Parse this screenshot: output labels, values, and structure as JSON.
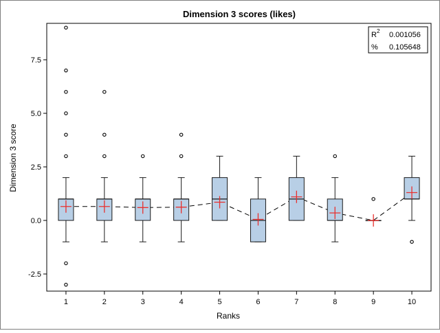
{
  "chart_data": {
    "type": "box",
    "title": "Dimension 3 scores (likes)",
    "xlabel": "Ranks",
    "ylabel": "Dimension 3 score",
    "xlim": [
      0.5,
      10.5
    ],
    "ylim": [
      -3.3,
      9.2
    ],
    "y_ticks": [
      -2.5,
      0.0,
      2.5,
      5.0,
      7.5
    ],
    "y_tick_labels": [
      "-2.5",
      "0.0",
      "2.5",
      "5.0",
      "7.5"
    ],
    "categories": [
      "1",
      "2",
      "3",
      "4",
      "5",
      "6",
      "7",
      "8",
      "9",
      "10"
    ],
    "boxes": [
      {
        "category": "1",
        "min": -1,
        "q1": 0,
        "median": 1,
        "q3": 1,
        "max": 2,
        "mean": 0.65,
        "outliers": [
          3,
          4,
          5,
          6,
          7,
          9,
          -2,
          -3
        ]
      },
      {
        "category": "2",
        "min": -1,
        "q1": 0,
        "median": 1,
        "q3": 1,
        "max": 2,
        "mean": 0.65,
        "outliers": [
          3,
          4,
          6
        ]
      },
      {
        "category": "3",
        "min": -1,
        "q1": 0,
        "median": 1,
        "q3": 1,
        "max": 2,
        "mean": 0.6,
        "outliers": [
          3
        ]
      },
      {
        "category": "4",
        "min": -1,
        "q1": 0,
        "median": 1,
        "q3": 1,
        "max": 2,
        "mean": 0.62,
        "outliers": [
          3,
          4
        ]
      },
      {
        "category": "5",
        "min": 0,
        "q1": 0,
        "median": 1,
        "q3": 2,
        "max": 3,
        "mean": 0.85,
        "outliers": []
      },
      {
        "category": "6",
        "min": -1,
        "q1": -1,
        "median": 0,
        "q3": 1,
        "max": 2,
        "mean": 0.05,
        "outliers": []
      },
      {
        "category": "7",
        "min": 0,
        "q1": 0,
        "median": 1,
        "q3": 2,
        "max": 3,
        "mean": 1.1,
        "outliers": []
      },
      {
        "category": "8",
        "min": -1,
        "q1": 0,
        "median": 0,
        "q3": 1,
        "max": 2,
        "mean": 0.35,
        "outliers": [
          3
        ]
      },
      {
        "category": "9",
        "min": 0,
        "q1": 0,
        "median": 0,
        "q3": 0,
        "max": 0,
        "mean": 0.0,
        "outliers": [
          1
        ]
      },
      {
        "category": "10",
        "min": 0,
        "q1": 1,
        "median": 1,
        "q3": 2,
        "max": 3,
        "mean": 1.3,
        "outliers": [
          -1
        ]
      }
    ],
    "inset": {
      "r2_label": "R",
      "r2_sup": "2",
      "r2_value": "0.001056",
      "pct_label": "%",
      "pct_value": "0.105648"
    },
    "grid": false,
    "colors": {
      "box_fill": "#b8cfe6",
      "box_stroke": "#1a1a1a",
      "mean_marker": "#e8302e",
      "mean_line": "#000000",
      "outlier": "#000000"
    }
  }
}
